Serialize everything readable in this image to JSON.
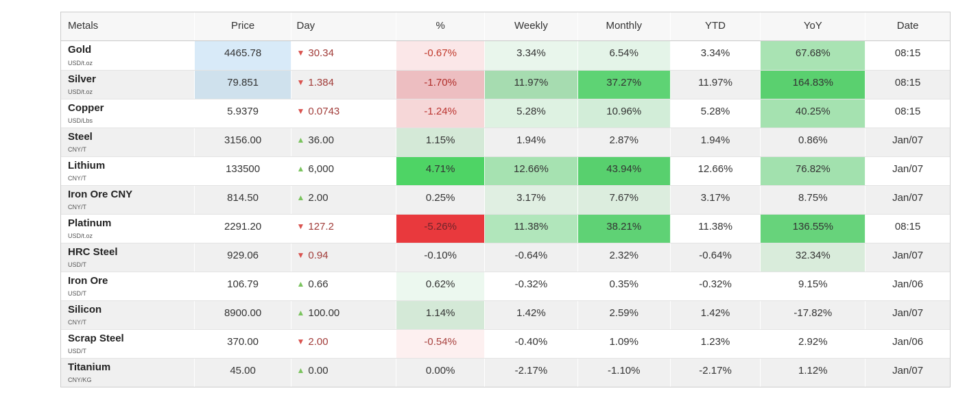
{
  "table": {
    "header": {
      "metals": "Metals",
      "price": "Price",
      "day": "Day",
      "pct": "%",
      "weekly": "Weekly",
      "monthly": "Monthly",
      "ytd": "YTD",
      "yoy": "YoY",
      "date": "Date"
    },
    "rows": [
      {
        "name": "Gold",
        "unit": "USD/t.oz",
        "price": "4465.78",
        "price_bg": "#d8eaf8",
        "day": {
          "dir": "down",
          "value": "30.34"
        },
        "pct": {
          "text": "-0.67%",
          "bg": "#fbe7e8",
          "color": "#c0392b"
        },
        "weekly": {
          "text": "3.34%",
          "bg": "#e9f6ec"
        },
        "monthly": {
          "text": "6.54%",
          "bg": "#e4f4e8"
        },
        "ytd": {
          "text": "3.34%",
          "bg": ""
        },
        "yoy": {
          "text": "67.68%",
          "bg": "#a9e3b3"
        },
        "date": "08:15"
      },
      {
        "name": "Silver",
        "unit": "USD/t.oz",
        "price": "79.851",
        "price_bg": "#cfe1ed",
        "day": {
          "dir": "down",
          "value": "1.384"
        },
        "pct": {
          "text": "-1.70%",
          "bg": "#edbec1",
          "color": "#b02e2a"
        },
        "weekly": {
          "text": "11.97%",
          "bg": "#a6dcb0"
        },
        "monthly": {
          "text": "37.27%",
          "bg": "#5ed374"
        },
        "ytd": {
          "text": "11.97%",
          "bg": ""
        },
        "yoy": {
          "text": "164.83%",
          "bg": "#5ad06f"
        },
        "date": "08:15"
      },
      {
        "name": "Copper",
        "unit": "USD/Lbs",
        "price": "5.9379",
        "price_bg": "",
        "day": {
          "dir": "down",
          "value": "0.0743"
        },
        "pct": {
          "text": "-1.24%",
          "bg": "#f6d7d8",
          "color": "#bb3430"
        },
        "weekly": {
          "text": "5.28%",
          "bg": "#def2e2"
        },
        "monthly": {
          "text": "10.96%",
          "bg": "#d2edd8"
        },
        "ytd": {
          "text": "5.28%",
          "bg": ""
        },
        "yoy": {
          "text": "40.25%",
          "bg": "#a5e2b0"
        },
        "date": "08:15"
      },
      {
        "name": "Steel",
        "unit": "CNY/T",
        "price": "3156.00",
        "price_bg": "",
        "day": {
          "dir": "up",
          "value": "36.00"
        },
        "pct": {
          "text": "1.15%",
          "bg": "#d4e9d7"
        },
        "weekly": {
          "text": "1.94%",
          "bg": ""
        },
        "monthly": {
          "text": "2.87%",
          "bg": ""
        },
        "ytd": {
          "text": "1.94%",
          "bg": ""
        },
        "yoy": {
          "text": "0.86%",
          "bg": ""
        },
        "date": "Jan/07"
      },
      {
        "name": "Lithium",
        "unit": "CNY/T",
        "price": "133500",
        "price_bg": "",
        "day": {
          "dir": "up",
          "value": "6,000"
        },
        "pct": {
          "text": "4.71%",
          "bg": "#4ed465"
        },
        "weekly": {
          "text": "12.66%",
          "bg": "#a6e2b1"
        },
        "monthly": {
          "text": "43.94%",
          "bg": "#58d06e"
        },
        "ytd": {
          "text": "12.66%",
          "bg": ""
        },
        "yoy": {
          "text": "76.82%",
          "bg": "#a2e1ae"
        },
        "date": "Jan/07"
      },
      {
        "name": "Iron Ore CNY",
        "unit": "CNY/T",
        "price": "814.50",
        "price_bg": "",
        "day": {
          "dir": "up",
          "value": "2.00"
        },
        "pct": {
          "text": "0.25%",
          "bg": ""
        },
        "weekly": {
          "text": "3.17%",
          "bg": "#e0efe2"
        },
        "monthly": {
          "text": "7.67%",
          "bg": "#dcedde"
        },
        "ytd": {
          "text": "3.17%",
          "bg": ""
        },
        "yoy": {
          "text": "8.75%",
          "bg": ""
        },
        "date": "Jan/07"
      },
      {
        "name": "Platinum",
        "unit": "USD/t.oz",
        "price": "2291.20",
        "price_bg": "",
        "day": {
          "dir": "down",
          "value": "127.2"
        },
        "pct": {
          "text": "-5.26%",
          "bg": "#e9393d",
          "color": "#6f242a"
        },
        "weekly": {
          "text": "11.38%",
          "bg": "#b1e6bb"
        },
        "monthly": {
          "text": "38.21%",
          "bg": "#5fd275"
        },
        "ytd": {
          "text": "11.38%",
          "bg": ""
        },
        "yoy": {
          "text": "136.55%",
          "bg": "#67d37b"
        },
        "date": "08:15"
      },
      {
        "name": "HRC Steel",
        "unit": "USD/T",
        "price": "929.06",
        "price_bg": "",
        "day": {
          "dir": "down",
          "value": "0.94"
        },
        "pct": {
          "text": "-0.10%",
          "bg": ""
        },
        "weekly": {
          "text": "-0.64%",
          "bg": ""
        },
        "monthly": {
          "text": "2.32%",
          "bg": ""
        },
        "ytd": {
          "text": "-0.64%",
          "bg": ""
        },
        "yoy": {
          "text": "32.34%",
          "bg": "#d9ecdb"
        },
        "date": "Jan/07"
      },
      {
        "name": "Iron Ore",
        "unit": "USD/T",
        "price": "106.79",
        "price_bg": "",
        "day": {
          "dir": "up",
          "value": "0.66"
        },
        "pct": {
          "text": "0.62%",
          "bg": "#ecf8ef"
        },
        "weekly": {
          "text": "-0.32%",
          "bg": ""
        },
        "monthly": {
          "text": "0.35%",
          "bg": ""
        },
        "ytd": {
          "text": "-0.32%",
          "bg": ""
        },
        "yoy": {
          "text": "9.15%",
          "bg": ""
        },
        "date": "Jan/06"
      },
      {
        "name": "Silicon",
        "unit": "CNY/T",
        "price": "8900.00",
        "price_bg": "",
        "day": {
          "dir": "up",
          "value": "100.00"
        },
        "pct": {
          "text": "1.14%",
          "bg": "#d4e9d7"
        },
        "weekly": {
          "text": "1.42%",
          "bg": ""
        },
        "monthly": {
          "text": "2.59%",
          "bg": ""
        },
        "ytd": {
          "text": "1.42%",
          "bg": ""
        },
        "yoy": {
          "text": "-17.82%",
          "bg": ""
        },
        "date": "Jan/07"
      },
      {
        "name": "Scrap Steel",
        "unit": "USD/T",
        "price": "370.00",
        "price_bg": "",
        "day": {
          "dir": "down",
          "value": "2.00"
        },
        "pct": {
          "text": "-0.54%",
          "bg": "#fdf0f0",
          "color": "#a8423f"
        },
        "weekly": {
          "text": "-0.40%",
          "bg": ""
        },
        "monthly": {
          "text": "1.09%",
          "bg": ""
        },
        "ytd": {
          "text": "1.23%",
          "bg": ""
        },
        "yoy": {
          "text": "2.92%",
          "bg": ""
        },
        "date": "Jan/06"
      },
      {
        "name": "Titanium",
        "unit": "CNY/KG",
        "price": "45.00",
        "price_bg": "",
        "day": {
          "dir": "up",
          "value": "0.00"
        },
        "pct": {
          "text": "0.00%",
          "bg": ""
        },
        "weekly": {
          "text": "-2.17%",
          "bg": ""
        },
        "monthly": {
          "text": "-1.10%",
          "bg": ""
        },
        "ytd": {
          "text": "-2.17%",
          "bg": ""
        },
        "yoy": {
          "text": "1.12%",
          "bg": ""
        },
        "date": "Jan/07"
      }
    ]
  },
  "icons": {
    "up": "▲",
    "down": "▼"
  },
  "colors": {
    "up_triangle": "#7ac35e",
    "down_triangle": "#d9534f",
    "up_text": "#333333",
    "down_text": "#a13c39",
    "row_alt_bg": "#f0f0f0",
    "header_bg": "#f7f7f7",
    "price_highlight_blue": "#d8eaf8"
  }
}
